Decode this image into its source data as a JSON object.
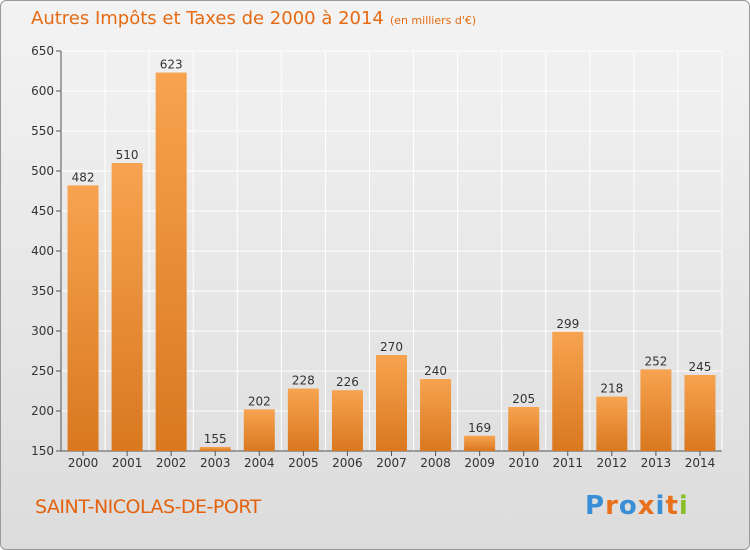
{
  "header": {
    "title": "Autres Impôts et Taxes de 2000 à 2014",
    "unit": "(en milliers d'€)"
  },
  "footer": {
    "city": "SAINT-NICOLAS-DE-PORT",
    "logo_text": "Proxiti"
  },
  "colors": {
    "title": "#e66a12",
    "bar_light": "#f7a350",
    "bar_dark": "#d9781f",
    "logo_letters": [
      "#3a8ed6",
      "#e8701a",
      "#3a8ed6",
      "#e8701a",
      "#3a8ed6",
      "#e8701a",
      "#8bbf2a"
    ]
  },
  "chart_data": {
    "type": "bar",
    "categories": [
      "2000",
      "2001",
      "2002",
      "2003",
      "2004",
      "2005",
      "2006",
      "2007",
      "2008",
      "2009",
      "2010",
      "2011",
      "2012",
      "2013",
      "2014"
    ],
    "values": [
      482,
      510,
      623,
      155,
      202,
      228,
      226,
      270,
      240,
      169,
      205,
      299,
      218,
      252,
      245
    ],
    "ylim": [
      150,
      650
    ],
    "yticks": [
      150,
      200,
      250,
      300,
      350,
      400,
      450,
      500,
      550,
      600,
      650
    ],
    "grid": true
  }
}
